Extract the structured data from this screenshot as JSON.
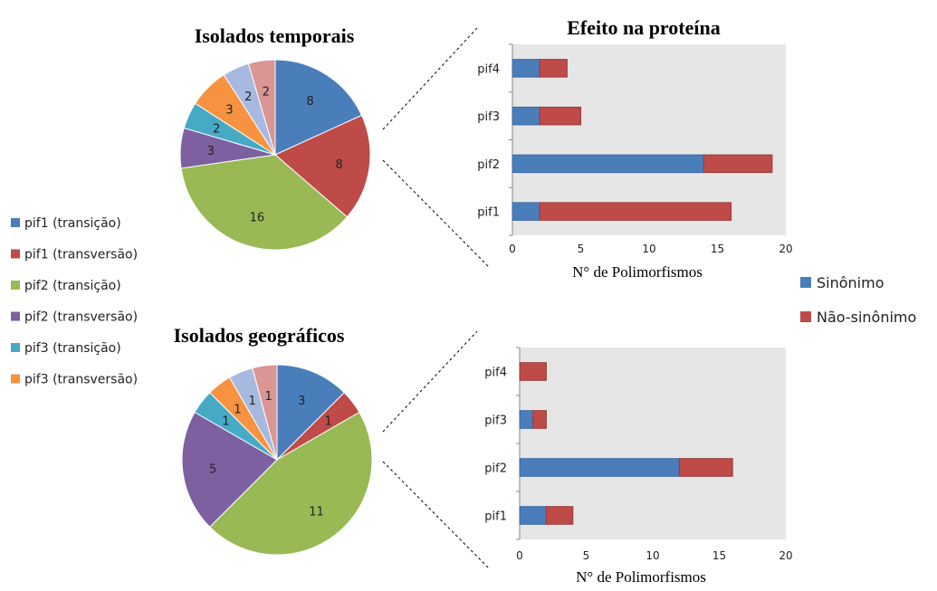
{
  "legend_pies": [
    {
      "label": "pif1 (transição)",
      "color": "#4a7ebb"
    },
    {
      "label": "pif1 (transversão)",
      "color": "#be4b48"
    },
    {
      "label": "pif2 (transição)",
      "color": "#98b954"
    },
    {
      "label": "pif2 (transversão)",
      "color": "#7d60a0"
    },
    {
      "label": "pif3 (transição)",
      "color": "#46aac5"
    },
    {
      "label": "pif3 (transversão)",
      "color": "#f69240"
    }
  ],
  "legend_bars": [
    {
      "label": "Sinônimo",
      "color": "#4a7ebb"
    },
    {
      "label": "Não-sinônimo",
      "color": "#be4b48"
    }
  ],
  "extra_slice_colors": [
    "#a7b9e0",
    "#d99694"
  ],
  "chart_data": [
    {
      "type": "pie",
      "title": "Isolados temporais",
      "values": [
        8,
        8,
        16,
        3,
        2,
        3,
        2,
        2
      ]
    },
    {
      "type": "pie",
      "title": "Isolados geográficos",
      "values": [
        3,
        1,
        11,
        5,
        1,
        1,
        1,
        1
      ]
    },
    {
      "type": "bar",
      "orientation": "horizontal",
      "stacked": true,
      "title": "Efeito na proteína",
      "xlabel": "N° de Polimorfismos",
      "categories": [
        "pif1",
        "pif2",
        "pif3",
        "pif4"
      ],
      "series": [
        {
          "name": "Sinônimo",
          "values": [
            2,
            14,
            2,
            2
          ]
        },
        {
          "name": "Não-sinônimo",
          "values": [
            14,
            5,
            3,
            2
          ]
        }
      ],
      "xlim": [
        0,
        20
      ],
      "xticks": [
        0,
        5,
        10,
        15,
        20
      ]
    },
    {
      "type": "bar",
      "orientation": "horizontal",
      "stacked": true,
      "title": "",
      "xlabel": "N° de Polimorfismos",
      "categories": [
        "pif1",
        "pif2",
        "pif3",
        "pif4"
      ],
      "series": [
        {
          "name": "Sinônimo",
          "values": [
            2,
            12,
            1,
            0
          ]
        },
        {
          "name": "Não-sinônimo",
          "values": [
            2,
            4,
            1,
            2
          ]
        }
      ],
      "xlim": [
        0,
        20
      ],
      "xticks": [
        0,
        5,
        10,
        15,
        20
      ]
    }
  ]
}
